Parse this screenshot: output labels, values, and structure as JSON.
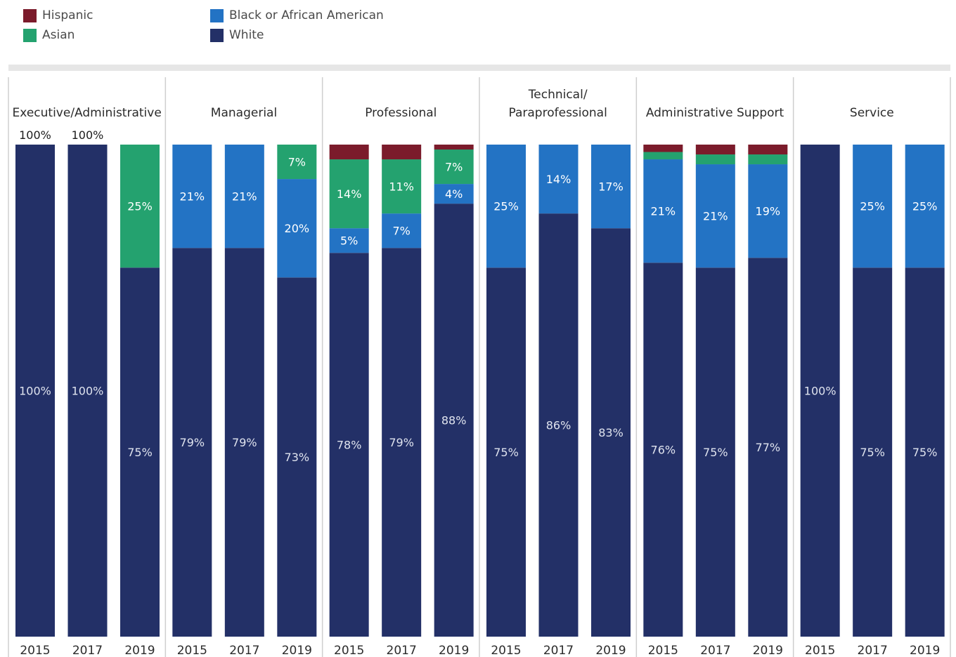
{
  "colors": {
    "White": "#233067",
    "Black or African American": "#2373c4",
    "Asian": "#24a26f",
    "Hispanic": "#7b1b2b"
  },
  "legend": {
    "items": [
      {
        "label": "Hispanic",
        "color": "#7b1b2b"
      },
      {
        "label": "Asian",
        "color": "#24a26f"
      },
      {
        "label": "Black or African American",
        "color": "#2373c4"
      },
      {
        "label": "White",
        "color": "#233067"
      }
    ]
  },
  "chart_data": {
    "type": "bar",
    "stacked": true,
    "orientation": "vertical",
    "ylim": [
      0,
      100
    ],
    "unit": "%",
    "series_order": [
      "White",
      "Black or African American",
      "Asian",
      "Hispanic"
    ],
    "panels": [
      {
        "title": "Executive/Administrative",
        "bars": [
          {
            "year": "2015",
            "segments": {
              "White": 100,
              "Black or African American": 0,
              "Asian": 0,
              "Hispanic": 0
            },
            "labels": {
              "White": "100%"
            },
            "label_above": "100%"
          },
          {
            "year": "2017",
            "segments": {
              "White": 100,
              "Black or African American": 0,
              "Asian": 0,
              "Hispanic": 0
            },
            "labels": {
              "White": "100%"
            },
            "label_above": "100%"
          },
          {
            "year": "2019",
            "segments": {
              "White": 75,
              "Black or African American": 0,
              "Asian": 25,
              "Hispanic": 0
            },
            "labels": {
              "White": "75%",
              "Asian": "25%"
            }
          }
        ]
      },
      {
        "title": "Managerial",
        "bars": [
          {
            "year": "2015",
            "segments": {
              "White": 79,
              "Black or African American": 21,
              "Asian": 0,
              "Hispanic": 0
            },
            "labels": {
              "White": "79%",
              "Black or African American": "21%"
            }
          },
          {
            "year": "2017",
            "segments": {
              "White": 79,
              "Black or African American": 21,
              "Asian": 0,
              "Hispanic": 0
            },
            "labels": {
              "White": "79%",
              "Black or African American": "21%"
            }
          },
          {
            "year": "2019",
            "segments": {
              "White": 73,
              "Black or African American": 20,
              "Asian": 7,
              "Hispanic": 0
            },
            "labels": {
              "White": "73%",
              "Black or African American": "20%",
              "Asian": "7%"
            }
          }
        ]
      },
      {
        "title": "Professional",
        "bars": [
          {
            "year": "2015",
            "segments": {
              "White": 78,
              "Black or African American": 5,
              "Asian": 14,
              "Hispanic": 3
            },
            "labels": {
              "White": "78%",
              "Black or African American": "5%",
              "Asian": "14%"
            }
          },
          {
            "year": "2017",
            "segments": {
              "White": 79,
              "Black or African American": 7,
              "Asian": 11,
              "Hispanic": 3
            },
            "labels": {
              "White": "79%",
              "Black or African American": "7%",
              "Asian": "11%"
            }
          },
          {
            "year": "2019",
            "segments": {
              "White": 88,
              "Black or African American": 4,
              "Asian": 7,
              "Hispanic": 1
            },
            "labels": {
              "White": "88%",
              "Black or African American": "4%",
              "Asian": "7%"
            }
          }
        ]
      },
      {
        "title": "Technical/ Paraprofessional",
        "bars": [
          {
            "year": "2015",
            "segments": {
              "White": 75,
              "Black or African American": 25,
              "Asian": 0,
              "Hispanic": 0
            },
            "labels": {
              "White": "75%",
              "Black or African American": "25%"
            }
          },
          {
            "year": "2017",
            "segments": {
              "White": 86,
              "Black or African American": 14,
              "Asian": 0,
              "Hispanic": 0
            },
            "labels": {
              "White": "86%",
              "Black or African American": "14%"
            }
          },
          {
            "year": "2019",
            "segments": {
              "White": 83,
              "Black or African American": 17,
              "Asian": 0,
              "Hispanic": 0
            },
            "labels": {
              "White": "83%",
              "Black or African American": "17%"
            }
          }
        ]
      },
      {
        "title": "Administrative Support",
        "bars": [
          {
            "year": "2015",
            "segments": {
              "White": 76,
              "Black or African American": 21,
              "Asian": 1.5,
              "Hispanic": 1.5
            },
            "labels": {
              "White": "76%",
              "Black or African American": "21%"
            }
          },
          {
            "year": "2017",
            "segments": {
              "White": 75,
              "Black or African American": 21,
              "Asian": 2,
              "Hispanic": 2
            },
            "labels": {
              "White": "75%",
              "Black or African American": "21%"
            }
          },
          {
            "year": "2019",
            "segments": {
              "White": 77,
              "Black or African American": 19,
              "Asian": 2,
              "Hispanic": 2
            },
            "labels": {
              "White": "77%",
              "Black or African American": "19%"
            }
          }
        ]
      },
      {
        "title": "Service",
        "bars": [
          {
            "year": "2015",
            "segments": {
              "White": 100,
              "Black or African American": 0,
              "Asian": 0,
              "Hispanic": 0
            },
            "labels": {
              "White": "100%"
            }
          },
          {
            "year": "2017",
            "segments": {
              "White": 75,
              "Black or African American": 25,
              "Asian": 0,
              "Hispanic": 0
            },
            "labels": {
              "White": "75%",
              "Black or African American": "25%"
            }
          },
          {
            "year": "2019",
            "segments": {
              "White": 75,
              "Black or African American": 25,
              "Asian": 0,
              "Hispanic": 0
            },
            "labels": {
              "White": "75%",
              "Black or African American": "25%"
            }
          }
        ]
      }
    ]
  }
}
